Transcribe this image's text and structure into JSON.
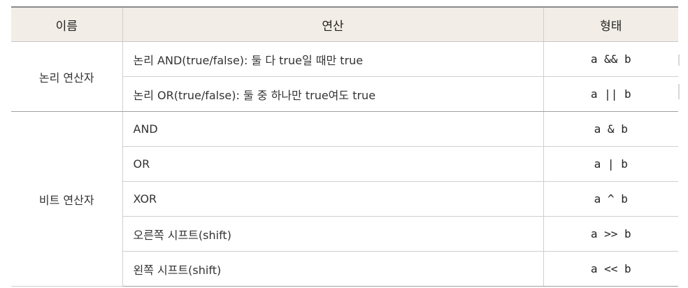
{
  "table": {
    "headers": {
      "name": "이름",
      "operation": "연산",
      "form": "형태"
    },
    "groups": [
      {
        "name": "논리 연산자",
        "rows": [
          {
            "operation": "논리 AND(true/false): 둘 다 true일 때만 true",
            "form": "a && b"
          },
          {
            "operation": "논리 OR(true/false): 둘 중 하나만 true여도 true",
            "form": "a || b"
          }
        ]
      },
      {
        "name": "비트 연산자",
        "rows": [
          {
            "operation": "AND",
            "form": "a & b"
          },
          {
            "operation": "OR",
            "form": "a | b"
          },
          {
            "operation": "XOR",
            "form": "a ^ b"
          },
          {
            "operation": "오른쪽 시프트(shift)",
            "form": "a >> b"
          },
          {
            "operation": "왼쪽 시프트(shift)",
            "form": "a << b"
          }
        ]
      }
    ]
  }
}
